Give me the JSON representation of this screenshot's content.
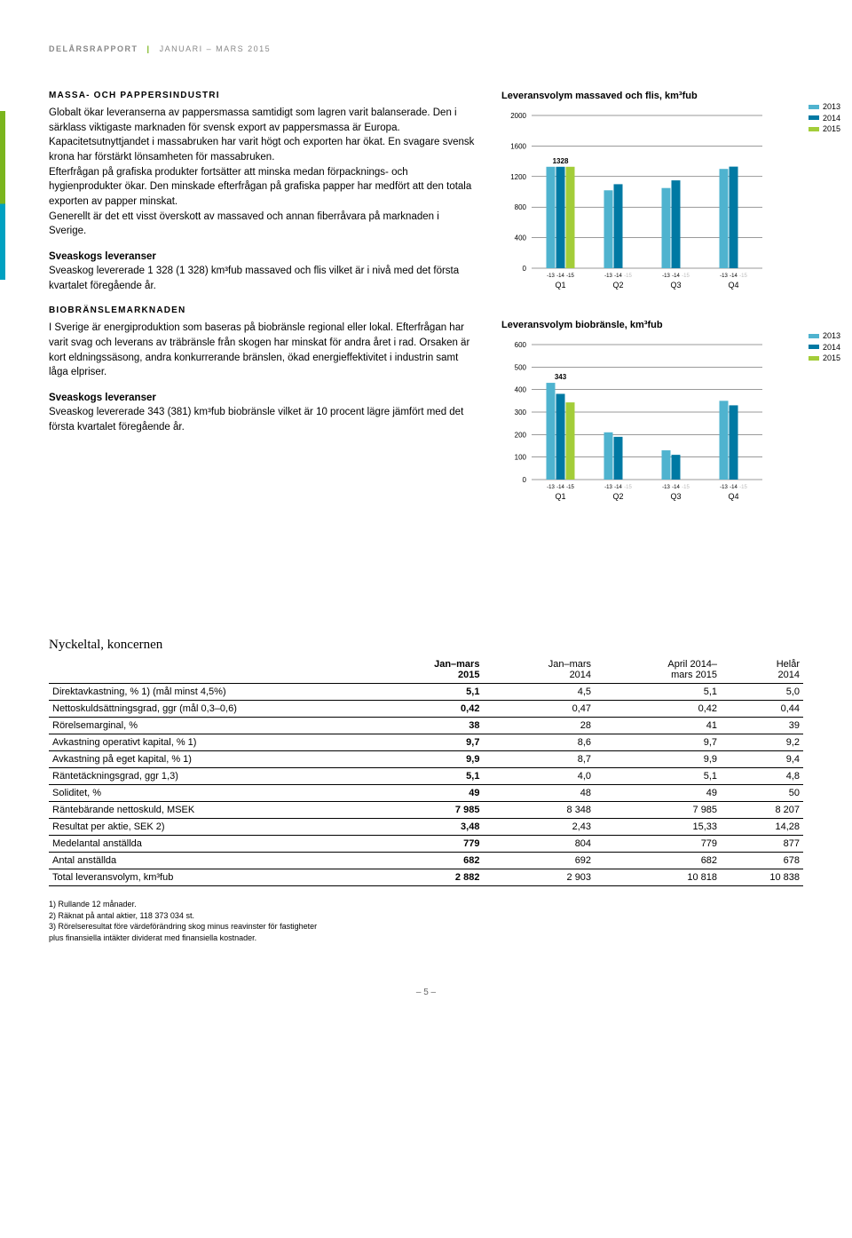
{
  "header": {
    "left": "DELÅRSRAPPORT",
    "right": "JANUARI – MARS 2015"
  },
  "text": {
    "sec1_title": "MASSA- OCH PAPPERSINDUSTRI",
    "sec1_body": "Globalt ökar leveranserna av pappersmassa samtidigt som lagren varit balanserade. Den i särklass viktigaste marknaden för svensk export av pappersmassa är Europa. Kapacitetsutnyttjandet i massabruken har varit högt och exporten har ökat. En svagare svensk krona har förstärkt lönsamheten för massabruken.\n   Efterfrågan på grafiska produkter fortsätter att minska medan förpacknings- och hygienprodukter ökar. Den minskade efterfrågan på grafiska papper har medfört att den totala exporten av papper minskat.\n   Generellt är det ett visst överskott av massaved och annan fiberråvara på marknaden i Sverige.",
    "sec1_sub_title": "Sveaskogs leveranser",
    "sec1_sub_body": "Sveaskog levererade 1 328 (1 328) km³fub massaved och flis vilket är i nivå med det första kvartalet föregående år.",
    "sec2_title": "BIOBRÄNSLEMARKNADEN",
    "sec2_body": "I Sverige är energiproduktion som baseras på biobränsle regional eller lokal. Efterfrågan har varit svag och leverans av träbränsle från skogen har minskat för andra året i rad. Orsaken är kort eldningssäsong, andra konkurrerande bränslen, ökad energieffektivitet i industrin samt låga elpriser.",
    "sec2_sub_title": "Sveaskogs leveranser",
    "sec2_sub_body": "Sveaskog levererade 343 (381) km³fub biobränsle vilket är 10 procent lägre jämfört med det första kvartalet föregående år."
  },
  "chart1": {
    "title": "Leveransvolym massaved och flis, km³fub",
    "ymax": 2000,
    "ytick_step": 400,
    "colors": {
      "2013": "#4fb3cf",
      "2014": "#0079a3",
      "2015": "#a3cd39"
    },
    "legend": [
      "2013",
      "2014",
      "2015"
    ],
    "quarters": [
      "Q1",
      "Q2",
      "Q3",
      "Q4"
    ],
    "xticks": [
      "-13",
      "-14",
      "-15",
      "-13",
      "-14",
      "-15",
      "-13",
      "-14",
      "-15",
      "-13",
      "-14",
      "-15"
    ],
    "data": {
      "Q1": [
        1328,
        1328,
        1328
      ],
      "Q2": [
        1020,
        1100,
        null
      ],
      "Q3": [
        1050,
        1150,
        null
      ],
      "Q4": [
        1300,
        1330,
        null
      ]
    },
    "callout": {
      "label": "1328",
      "quarter": "Q1"
    }
  },
  "chart2": {
    "title": "Leveransvolym biobränsle, km³fub",
    "ymax": 600,
    "ymin": 0,
    "yticks": [
      0,
      100,
      200,
      300,
      400,
      500,
      600
    ],
    "colors": {
      "2013": "#4fb3cf",
      "2014": "#0079a3",
      "2015": "#a3cd39"
    },
    "legend": [
      "2013",
      "2014",
      "2015"
    ],
    "quarters": [
      "Q1",
      "Q2",
      "Q3",
      "Q4"
    ],
    "xticks": [
      "-13",
      "-14",
      "-15",
      "-13",
      "-14",
      "-15",
      "-13",
      "-14",
      "-15",
      "-13",
      "-14",
      "-15"
    ],
    "data": {
      "Q1": [
        430,
        381,
        343
      ],
      "Q2": [
        210,
        190,
        null
      ],
      "Q3": [
        130,
        110,
        null
      ],
      "Q4": [
        350,
        330,
        null
      ]
    },
    "callout": {
      "label": "343",
      "quarter": "Q1"
    }
  },
  "table": {
    "title": "Nyckeltal, koncernen",
    "columns": [
      "",
      "Jan–mars\n2015",
      "Jan–mars\n2014",
      "April 2014–\nmars 2015",
      "Helår\n2014"
    ],
    "rows": [
      [
        "Direktavkastning, % 1)        (mål minst 4,5%)",
        "5,1",
        "4,5",
        "5,1",
        "5,0"
      ],
      [
        "Nettoskuldsättningsgrad, ggr  (mål 0,3–0,6)",
        "0,42",
        "0,47",
        "0,42",
        "0,44"
      ],
      [
        "Rörelsemarginal, %",
        "38",
        "28",
        "41",
        "39"
      ],
      [
        "Avkastning operativt kapital, % 1)",
        "9,7",
        "8,6",
        "9,7",
        "9,2"
      ],
      [
        "Avkastning på eget kapital, % 1)",
        "9,9",
        "8,7",
        "9,9",
        "9,4"
      ],
      [
        "Räntetäckningsgrad, ggr 1,3)",
        "5,1",
        "4,0",
        "5,1",
        "4,8"
      ],
      [
        "Soliditet, %",
        "49",
        "48",
        "49",
        "50"
      ],
      [
        "Räntebärande nettoskuld, MSEK",
        "7 985",
        "8 348",
        "7 985",
        "8 207"
      ],
      [
        "Resultat per aktie, SEK 2)",
        "3,48",
        "2,43",
        "15,33",
        "14,28"
      ],
      [
        "Medelantal anställda",
        "779",
        "804",
        "779",
        "877"
      ],
      [
        "Antal anställda",
        "682",
        "692",
        "682",
        "678"
      ],
      [
        "Total leveransvolym, km³fub",
        "2 882",
        "2 903",
        "10 818",
        "10 838"
      ]
    ]
  },
  "footnotes": [
    "1) Rullande 12 månader.",
    "2) Räknat på antal aktier, 118 373 034 st.",
    "3) Rörelseresultat före värdeförändring skog minus reavinster för fastigheter",
    "   plus finansiella intäkter dividerat med finansiella kostnader."
  ],
  "pagenum": "– 5 –"
}
